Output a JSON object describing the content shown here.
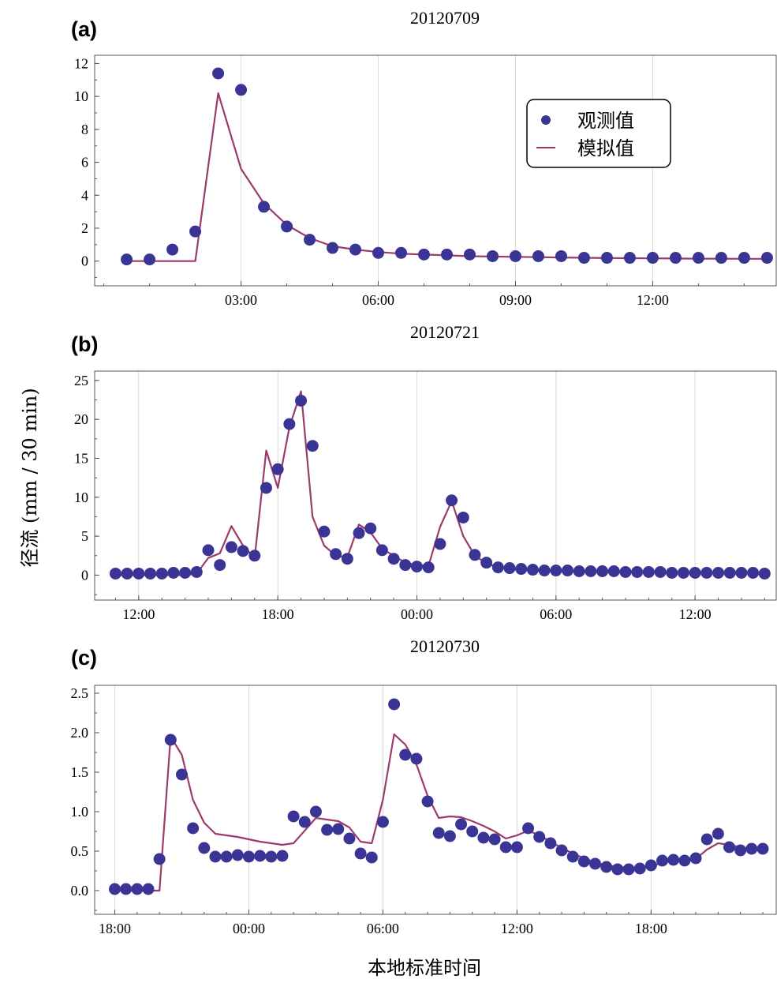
{
  "colors": {
    "observed": "#3a3595",
    "simulated": "#9b3a6c",
    "grid": "#d8d8d8",
    "frame": "#555555"
  },
  "ylabel": "径流    (mm / 30 min)",
  "xlabel": "本地标准时间",
  "legend": {
    "observed": "观测值",
    "simulated": "模拟值"
  },
  "chart_data": [
    {
      "panel": "(a)",
      "title": "20120709",
      "type": "line+scatter",
      "xaxis": "hours",
      "xlim": [
        -0.2,
        14.7
      ],
      "ylim": [
        -1.5,
        12.5
      ],
      "yticks": [
        0,
        2,
        4,
        6,
        8,
        10,
        12
      ],
      "xticks": [
        3,
        6,
        9,
        12
      ],
      "xtick_labels": [
        "03:00",
        "06:00",
        "09:00",
        "12:00"
      ],
      "legend_position": "top-right",
      "observed": {
        "x": [
          0.5,
          1.0,
          1.5,
          2.0,
          2.5,
          3.0,
          3.5,
          4.0,
          4.5,
          5.0,
          5.5,
          6.0,
          6.5,
          7.0,
          7.5,
          8.0,
          8.5,
          9.0,
          9.5,
          10.0,
          10.5,
          11.0,
          11.5,
          12.0,
          12.5,
          13.0,
          13.5,
          14.0,
          14.5
        ],
        "y": [
          0.1,
          0.1,
          0.7,
          1.8,
          11.4,
          10.4,
          3.3,
          2.1,
          1.3,
          0.8,
          0.7,
          0.5,
          0.5,
          0.4,
          0.4,
          0.4,
          0.3,
          0.3,
          0.3,
          0.3,
          0.2,
          0.2,
          0.2,
          0.2,
          0.2,
          0.2,
          0.2,
          0.2,
          0.2
        ]
      },
      "simulated": {
        "x": [
          0.5,
          1.0,
          1.5,
          2.0,
          2.5,
          3.0,
          3.5,
          4.0,
          4.5,
          5.0,
          5.5,
          6.0,
          6.5,
          7.0,
          7.5,
          8.0,
          8.5,
          9.0,
          9.5,
          10.0,
          10.5,
          11.0,
          11.5,
          12.0,
          12.5,
          13.0,
          13.5,
          14.0,
          14.5
        ],
        "y": [
          0,
          0,
          0,
          0,
          10.2,
          5.6,
          3.5,
          2.2,
          1.4,
          0.9,
          0.7,
          0.55,
          0.45,
          0.4,
          0.35,
          0.3,
          0.28,
          0.26,
          0.24,
          0.22,
          0.2,
          0.19,
          0.18,
          0.17,
          0.16,
          0.15,
          0.15,
          0.14,
          0.14
        ]
      }
    },
    {
      "panel": "(b)",
      "title": "20120721",
      "type": "line+scatter",
      "xaxis": "hours",
      "xlim": [
        10.1,
        39.5
      ],
      "ylim": [
        -3.2,
        26.2
      ],
      "yticks": [
        0,
        5,
        10,
        15,
        20,
        25
      ],
      "xticks": [
        12,
        18,
        24,
        30,
        36
      ],
      "xtick_labels": [
        "12:00",
        "18:00",
        "00:00",
        "06:00",
        "12:00"
      ],
      "observed": {
        "x": [
          11.0,
          11.5,
          12.0,
          12.5,
          13.0,
          13.5,
          14.0,
          14.5,
          15.0,
          15.5,
          16.0,
          16.5,
          17.0,
          17.5,
          18.0,
          18.5,
          19.0,
          19.5,
          20.0,
          20.5,
          21.0,
          21.5,
          22.0,
          22.5,
          23.0,
          23.5,
          24.0,
          24.5,
          25.0,
          25.5,
          26.0,
          26.5,
          27.0,
          27.5,
          28.0,
          28.5,
          29.0,
          29.5,
          30.0,
          30.5,
          31.0,
          31.5,
          32.0,
          32.5,
          33.0,
          33.5,
          34.0,
          34.5,
          35.0,
          35.5,
          36.0,
          36.5,
          37.0,
          37.5,
          38.0,
          38.5,
          39.0
        ],
        "y": [
          0.2,
          0.2,
          0.2,
          0.2,
          0.2,
          0.3,
          0.3,
          0.4,
          3.2,
          1.3,
          3.6,
          3.1,
          2.5,
          11.2,
          13.6,
          19.4,
          22.4,
          16.6,
          5.6,
          2.7,
          2.1,
          5.4,
          6.0,
          3.2,
          2.1,
          1.3,
          1.1,
          1.0,
          4.0,
          9.6,
          7.4,
          2.6,
          1.6,
          1.0,
          0.9,
          0.8,
          0.7,
          0.6,
          0.6,
          0.6,
          0.5,
          0.5,
          0.5,
          0.5,
          0.4,
          0.4,
          0.4,
          0.4,
          0.3,
          0.3,
          0.3,
          0.3,
          0.3,
          0.3,
          0.3,
          0.3,
          0.2
        ]
      },
      "simulated": {
        "x": [
          11.0,
          11.5,
          12.0,
          12.5,
          13.0,
          13.5,
          14.0,
          14.5,
          15.0,
          15.5,
          16.0,
          16.5,
          17.0,
          17.5,
          18.0,
          18.5,
          19.0,
          19.5,
          20.0,
          20.5,
          21.0,
          21.5,
          22.0,
          22.5,
          23.0,
          23.5,
          24.0,
          24.5,
          25.0,
          25.5,
          26.0,
          26.5,
          27.0,
          27.5,
          28.0,
          28.5,
          29.0,
          29.5,
          30.0,
          30.5,
          31.0,
          31.5,
          32.0,
          32.5,
          33.0,
          33.5,
          34.0,
          34.5,
          35.0,
          35.5,
          36.0,
          36.5,
          37.0,
          37.5,
          38.0,
          38.5,
          39.0
        ],
        "y": [
          0,
          0,
          0,
          0,
          0,
          0,
          0,
          0.2,
          2.2,
          2.8,
          6.3,
          3.8,
          2.2,
          16.0,
          11.2,
          19.0,
          23.6,
          7.5,
          3.8,
          2.5,
          2.3,
          6.5,
          5.5,
          3.4,
          2.5,
          1.6,
          1.3,
          1.2,
          6.2,
          9.5,
          5.0,
          2.5,
          1.5,
          1.0,
          0.8,
          0.7,
          0.6,
          0.55,
          0.5,
          0.48,
          0.45,
          0.42,
          0.4,
          0.38,
          0.36,
          0.34,
          0.32,
          0.3,
          0.29,
          0.28,
          0.27,
          0.26,
          0.25,
          0.24,
          0.23,
          0.22,
          0.21
        ]
      }
    },
    {
      "panel": "(c)",
      "title": "20120730",
      "type": "line+scatter",
      "xaxis": "hours",
      "xlim": [
        17.1,
        47.6
      ],
      "ylim": [
        -0.3,
        2.6
      ],
      "yticks": [
        0.0,
        0.5,
        1.0,
        1.5,
        2.0,
        2.5
      ],
      "ytick_labels": [
        "0.0",
        "0.5",
        "1.0",
        "1.5",
        "2.0",
        "2.5"
      ],
      "xticks": [
        18,
        24,
        30,
        36,
        42
      ],
      "xtick_labels": [
        "18:00",
        "00:00",
        "06:00",
        "12:00",
        "18:00"
      ],
      "observed": {
        "x": [
          18.0,
          18.5,
          19.0,
          19.5,
          20.0,
          20.5,
          21.0,
          21.5,
          22.0,
          22.5,
          23.0,
          23.5,
          24.0,
          24.5,
          25.0,
          25.5,
          26.0,
          26.5,
          27.0,
          27.5,
          28.0,
          28.5,
          29.0,
          29.5,
          30.0,
          30.5,
          31.0,
          31.5,
          32.0,
          32.5,
          33.0,
          33.5,
          34.0,
          34.5,
          35.0,
          35.5,
          36.0,
          36.5,
          37.0,
          37.5,
          38.0,
          38.5,
          39.0,
          39.5,
          40.0,
          40.5,
          41.0,
          41.5,
          42.0,
          42.5,
          43.0,
          43.5,
          44.0,
          44.5,
          45.0,
          45.5,
          46.0,
          46.5,
          47.0
        ],
        "y": [
          0.02,
          0.02,
          0.02,
          0.02,
          0.4,
          1.91,
          1.47,
          0.79,
          0.54,
          0.43,
          0.43,
          0.45,
          0.43,
          0.44,
          0.43,
          0.44,
          0.94,
          0.87,
          1.0,
          0.77,
          0.78,
          0.66,
          0.47,
          0.42,
          0.87,
          2.36,
          1.72,
          1.67,
          1.13,
          0.73,
          0.69,
          0.84,
          0.75,
          0.67,
          0.65,
          0.55,
          0.55,
          0.79,
          0.68,
          0.6,
          0.51,
          0.43,
          0.37,
          0.34,
          0.3,
          0.27,
          0.27,
          0.28,
          0.32,
          0.38,
          0.39,
          0.38,
          0.41,
          0.65,
          0.72,
          0.55,
          0.51,
          0.53,
          0.53
        ]
      },
      "simulated": {
        "x": [
          18.0,
          18.5,
          19.0,
          19.5,
          20.0,
          20.5,
          21.0,
          21.5,
          22.0,
          22.5,
          23.0,
          23.5,
          24.0,
          24.5,
          25.0,
          25.5,
          26.0,
          26.5,
          27.0,
          27.5,
          28.0,
          28.5,
          29.0,
          29.5,
          30.0,
          30.5,
          31.0,
          31.5,
          32.0,
          32.5,
          33.0,
          33.5,
          34.0,
          34.5,
          35.0,
          35.5,
          36.0,
          36.5,
          37.0,
          37.5,
          38.0,
          38.5,
          39.0,
          39.5,
          40.0,
          40.5,
          41.0,
          41.5,
          42.0,
          42.5,
          43.0,
          43.5,
          44.0,
          44.5,
          45.0,
          45.5,
          46.0,
          46.5,
          47.0
        ],
        "y": [
          0,
          0,
          0,
          0,
          0,
          1.95,
          1.72,
          1.15,
          0.86,
          0.72,
          0.7,
          0.68,
          0.65,
          0.62,
          0.6,
          0.58,
          0.6,
          0.76,
          0.92,
          0.9,
          0.88,
          0.8,
          0.62,
          0.6,
          1.15,
          1.98,
          1.85,
          1.6,
          1.2,
          0.92,
          0.94,
          0.93,
          0.88,
          0.82,
          0.75,
          0.66,
          0.7,
          0.76,
          0.7,
          0.62,
          0.54,
          0.47,
          0.41,
          0.36,
          0.32,
          0.3,
          0.29,
          0.29,
          0.31,
          0.35,
          0.38,
          0.38,
          0.4,
          0.52,
          0.6,
          0.58,
          0.55,
          0.53,
          0.53
        ]
      }
    }
  ]
}
